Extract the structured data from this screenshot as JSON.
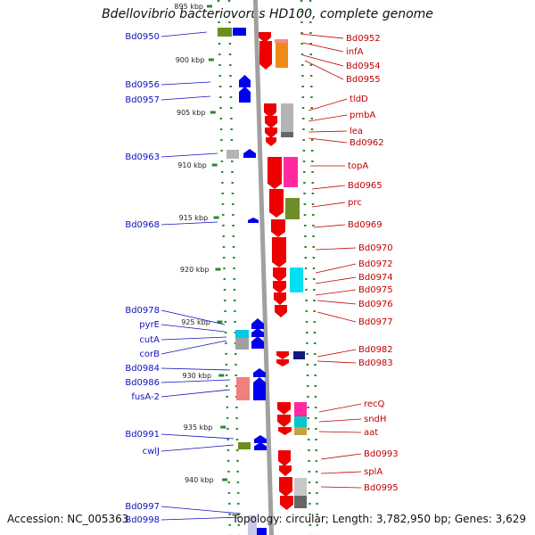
{
  "title": "Bdellovibrio bacteriovorus HD100, complete genome",
  "accession": "Accession: NC_005363",
  "summary": "Topology: circular; Length: 3,782,950 bp; Genes: 3,629",
  "colors": {
    "minus_strand": "#0000ee",
    "plus_strand": "#ee0000",
    "backbone": "#a0a0a0",
    "tick": "#2a8a2a",
    "left_label": "#1010c0",
    "right_label": "#c00000"
  },
  "kbp_ticks": [
    {
      "label": "895 kbp"
    },
    {
      "label": "900 kbp"
    },
    {
      "label": "905 kbp"
    },
    {
      "label": "910 kbp"
    },
    {
      "label": "915 kbp"
    },
    {
      "label": "920 kbp"
    },
    {
      "label": "925 kbp"
    },
    {
      "label": "930 kbp"
    },
    {
      "label": "935 kbp"
    },
    {
      "label": "940 kbp"
    }
  ],
  "left_labels": [
    "Bd0950",
    "Bd0956",
    "Bd0957",
    "Bd0963",
    "Bd0968",
    "Bd0978",
    "pyrE",
    "cutA",
    "corB",
    "Bd0984",
    "Bd0986",
    "fusA-2",
    "Bd0991",
    "cwlJ",
    "Bd0997",
    "Bd0998"
  ],
  "right_labels": [
    "Bd0952",
    "infA",
    "Bd0954",
    "Bd0955",
    "tldD",
    "pmbA",
    "lea",
    "Bd0962",
    "topA",
    "Bd0965",
    "prc",
    "Bd0969",
    "Bd0970",
    "Bd0972",
    "Bd0974",
    "Bd0975",
    "Bd0976",
    "Bd0977",
    "Bd0982",
    "Bd0983",
    "recQ",
    "sndH",
    "aat",
    "Bd0993",
    "splA",
    "Bd0995"
  ]
}
